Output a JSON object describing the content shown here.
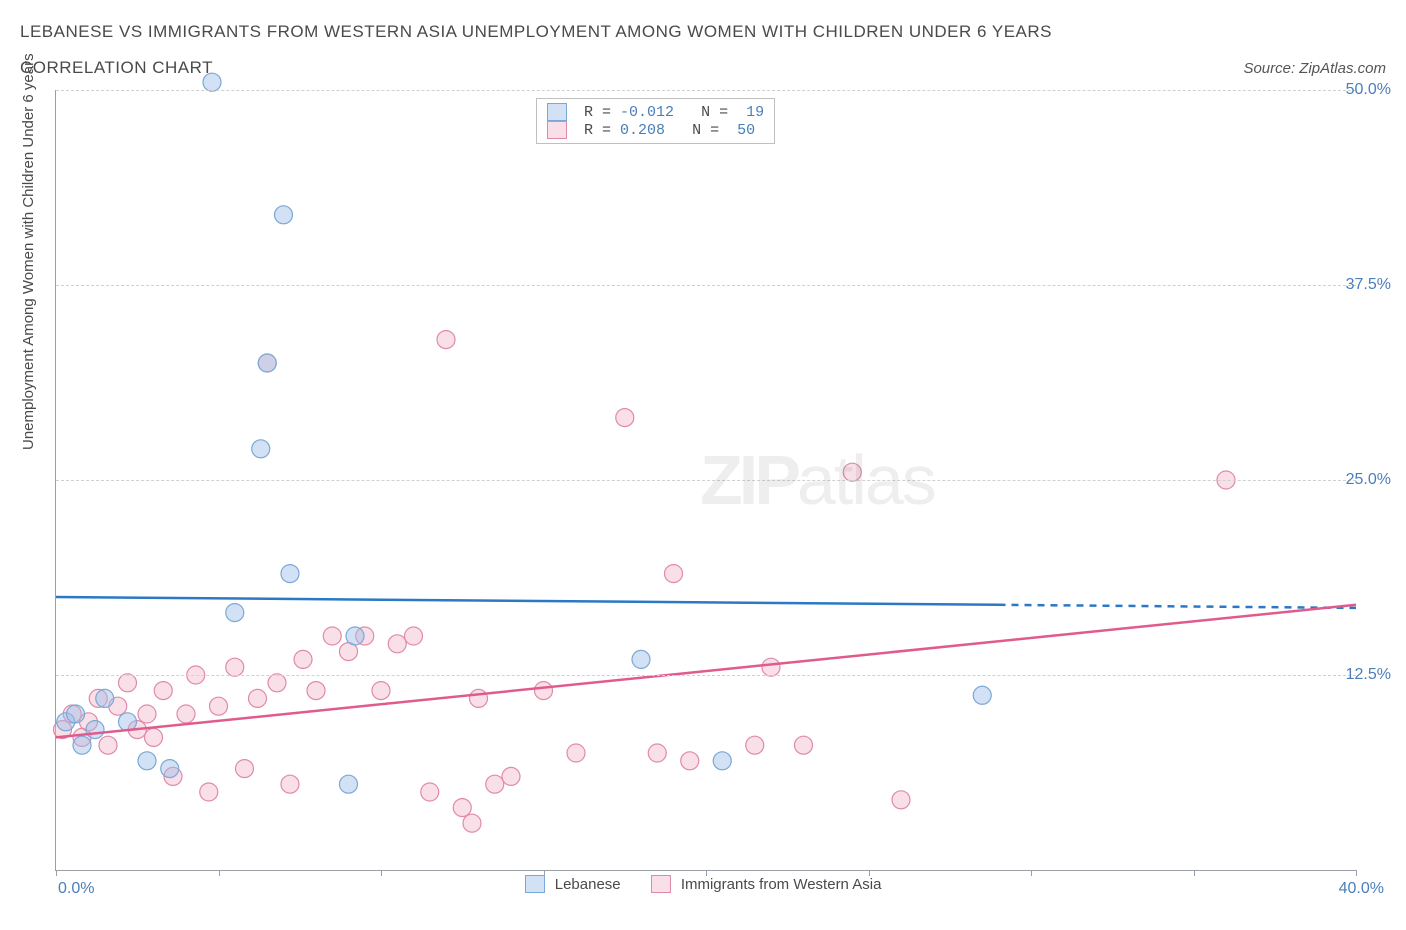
{
  "title_line1": "LEBANESE VS IMMIGRANTS FROM WESTERN ASIA UNEMPLOYMENT AMONG WOMEN WITH CHILDREN UNDER 6 YEARS",
  "title_line2": "CORRELATION CHART",
  "source": "Source: ZipAtlas.com",
  "y_axis_label": "Unemployment Among Women with Children Under 6 years",
  "chart": {
    "type": "scatter",
    "xlim": [
      0,
      40
    ],
    "ylim": [
      0,
      50
    ],
    "x_ticks": [
      0,
      5,
      10,
      15,
      20,
      25,
      30,
      35,
      40
    ],
    "right_ticks": [
      12.5,
      25.0,
      37.5,
      50.0
    ],
    "x_axis_start_label": "0.0%",
    "x_axis_end_label": "40.0%",
    "grid_color": "#d0d0d0",
    "axis_color": "#9aa0a6",
    "tick_label_color": "#4a7ebb",
    "background_color": "#ffffff",
    "marker_radius": 9,
    "marker_stroke_width": 1.2,
    "trendline_width": 2.5,
    "series": {
      "a": {
        "label": "Lebanese",
        "fill": "rgba(155,190,230,0.45)",
        "stroke": "#7aa8d8",
        "line_color": "#2b78c4",
        "stats": {
          "r_label": "R =",
          "r": "-0.012",
          "n_label": "N =",
          "n": "19"
        },
        "trendline": {
          "x1": 0,
          "y1": 17.5,
          "x2": 29,
          "y2": 17.0,
          "dash_after_x": 29,
          "dash_to_x": 40,
          "dash_to_y": 16.8
        },
        "points": [
          {
            "x": 0.3,
            "y": 9.5
          },
          {
            "x": 0.6,
            "y": 10.0
          },
          {
            "x": 0.8,
            "y": 8.0
          },
          {
            "x": 1.2,
            "y": 9.0
          },
          {
            "x": 1.5,
            "y": 11.0
          },
          {
            "x": 2.2,
            "y": 9.5
          },
          {
            "x": 2.8,
            "y": 7.0
          },
          {
            "x": 3.5,
            "y": 6.5
          },
          {
            "x": 4.8,
            "y": 50.5
          },
          {
            "x": 5.5,
            "y": 16.5
          },
          {
            "x": 7.0,
            "y": 42.0
          },
          {
            "x": 6.3,
            "y": 27.0
          },
          {
            "x": 6.5,
            "y": 32.5
          },
          {
            "x": 7.2,
            "y": 19.0
          },
          {
            "x": 9.0,
            "y": 5.5
          },
          {
            "x": 9.2,
            "y": 15.0
          },
          {
            "x": 18.0,
            "y": 13.5
          },
          {
            "x": 20.5,
            "y": 7.0
          },
          {
            "x": 28.5,
            "y": 11.2
          }
        ]
      },
      "b": {
        "label": "Immigrants from Western Asia",
        "fill": "rgba(240,175,195,0.40)",
        "stroke": "#e18aa8",
        "line_color": "#e05b8d",
        "stats": {
          "r_label": "R =",
          "r": " 0.208",
          "n_label": "N =",
          "n": "50"
        },
        "trendline": {
          "x1": 0,
          "y1": 8.5,
          "x2": 40,
          "y2": 17.0
        },
        "points": [
          {
            "x": 0.2,
            "y": 9.0
          },
          {
            "x": 0.5,
            "y": 10.0
          },
          {
            "x": 0.8,
            "y": 8.5
          },
          {
            "x": 1.0,
            "y": 9.5
          },
          {
            "x": 1.3,
            "y": 11.0
          },
          {
            "x": 1.6,
            "y": 8.0
          },
          {
            "x": 1.9,
            "y": 10.5
          },
          {
            "x": 2.2,
            "y": 12.0
          },
          {
            "x": 2.5,
            "y": 9.0
          },
          {
            "x": 2.8,
            "y": 10.0
          },
          {
            "x": 3.0,
            "y": 8.5
          },
          {
            "x": 3.3,
            "y": 11.5
          },
          {
            "x": 3.6,
            "y": 6.0
          },
          {
            "x": 4.0,
            "y": 10.0
          },
          {
            "x": 4.3,
            "y": 12.5
          },
          {
            "x": 4.7,
            "y": 5.0
          },
          {
            "x": 5.0,
            "y": 10.5
          },
          {
            "x": 5.5,
            "y": 13.0
          },
          {
            "x": 5.8,
            "y": 6.5
          },
          {
            "x": 6.2,
            "y": 11.0
          },
          {
            "x": 6.5,
            "y": 32.5
          },
          {
            "x": 6.8,
            "y": 12.0
          },
          {
            "x": 7.2,
            "y": 5.5
          },
          {
            "x": 7.6,
            "y": 13.5
          },
          {
            "x": 8.0,
            "y": 11.5
          },
          {
            "x": 8.5,
            "y": 15.0
          },
          {
            "x": 9.0,
            "y": 14.0
          },
          {
            "x": 9.5,
            "y": 15.0
          },
          {
            "x": 10.0,
            "y": 11.5
          },
          {
            "x": 10.5,
            "y": 14.5
          },
          {
            "x": 11.0,
            "y": 15.0
          },
          {
            "x": 11.5,
            "y": 5.0
          },
          {
            "x": 12.0,
            "y": 34.0
          },
          {
            "x": 12.5,
            "y": 4.0
          },
          {
            "x": 13.0,
            "y": 11.0
          },
          {
            "x": 13.5,
            "y": 5.5
          },
          {
            "x": 14.0,
            "y": 6.0
          },
          {
            "x": 15.0,
            "y": 11.5
          },
          {
            "x": 16.0,
            "y": 7.5
          },
          {
            "x": 17.5,
            "y": 29.0
          },
          {
            "x": 18.5,
            "y": 7.5
          },
          {
            "x": 19.0,
            "y": 19.0
          },
          {
            "x": 19.5,
            "y": 7.0
          },
          {
            "x": 22.0,
            "y": 13.0
          },
          {
            "x": 23.0,
            "y": 8.0
          },
          {
            "x": 24.5,
            "y": 25.5
          },
          {
            "x": 26.0,
            "y": 4.5
          },
          {
            "x": 21.5,
            "y": 8.0
          },
          {
            "x": 36.0,
            "y": 25.0
          },
          {
            "x": 12.8,
            "y": 3.0
          }
        ]
      }
    }
  },
  "watermark": {
    "zip": "ZIP",
    "atlas": "atlas"
  }
}
